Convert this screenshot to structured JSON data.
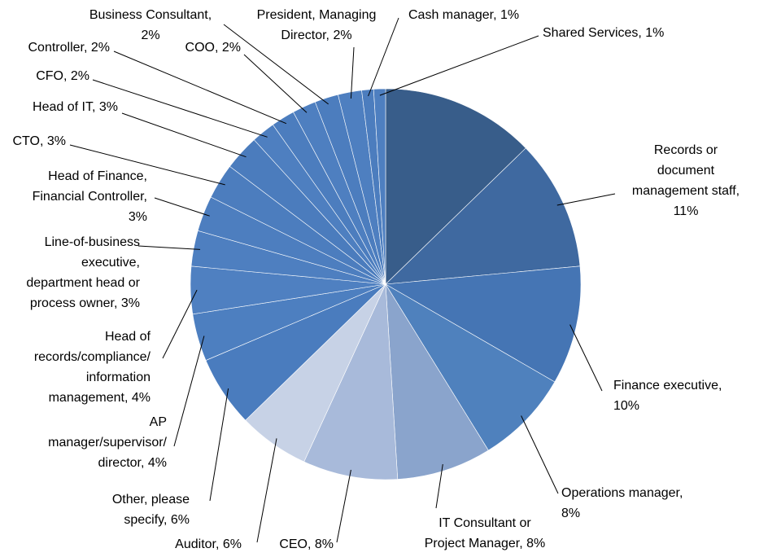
{
  "chart_data": {
    "type": "pie",
    "start_angle_deg": 0,
    "direction": "clockwise",
    "slices": [
      {
        "label": "",
        "value": 13,
        "label_text": [],
        "color": "#385D8A"
      },
      {
        "label": "Records or document management staff",
        "value": 11,
        "label_text": [
          "Records or",
          "document",
          "management staff,",
          "11%"
        ],
        "color": "#3F69A0"
      },
      {
        "label": "Finance executive",
        "value": 10,
        "label_text": [
          "Finance executive,",
          "10%"
        ],
        "color": "#4575B4"
      },
      {
        "label": "Operations manager",
        "value": 8,
        "label_text": [
          "Operations manager,",
          "8%"
        ],
        "color": "#4F81BD"
      },
      {
        "label": "IT Consultant or Project Manager",
        "value": 8,
        "label_text": [
          "IT Consultant or",
          "Project Manager, 8%"
        ],
        "color": "#8AA4CC"
      },
      {
        "label": "CEO",
        "value": 8,
        "label_text": [
          "CEO, 8%"
        ],
        "color": "#A8BADA"
      },
      {
        "label": "Auditor",
        "value": 6,
        "label_text": [
          "Auditor, 6%"
        ],
        "color": "#C7D2E6"
      },
      {
        "label": "Other, please specify",
        "value": 6,
        "label_text": [
          "Other, please",
          "specify, 6%"
        ],
        "color": "#4A7CBE"
      },
      {
        "label": "AP manager/supervisor/director",
        "value": 4,
        "label_text": [
          "AP",
          "manager/supervisor/",
          "director, 4%"
        ],
        "color": "#4D7FC0"
      },
      {
        "label": "Head of records/compliance/information management",
        "value": 4,
        "label_text": [
          "Head of",
          "records/compliance/",
          "information",
          "management, 4%"
        ],
        "color": "#4F80C1"
      },
      {
        "label": "Line-of-business executive, department head or process owner",
        "value": 3,
        "label_text": [
          "Line-of-business",
          "executive,",
          "department head or",
          "process owner, 3%"
        ],
        "color": "#4E7FC0"
      },
      {
        "label": "Head of Finance, Financial Controller",
        "value": 3,
        "label_text": [
          "Head of Finance,",
          "Financial Controller,",
          "3%"
        ],
        "color": "#4D7EBF"
      },
      {
        "label": "CTO",
        "value": 3,
        "label_text": [
          "CTO, 3%"
        ],
        "color": "#4C7DBE"
      },
      {
        "label": "Head of IT",
        "value": 3,
        "label_text": [
          "Head of IT, 3%"
        ],
        "color": "#4B7CBD"
      },
      {
        "label": "CFO",
        "value": 2,
        "label_text": [
          "CFO, 2%"
        ],
        "color": "#4E7FC0"
      },
      {
        "label": "Controller",
        "value": 2,
        "label_text": [
          "Controller, 2%"
        ],
        "color": "#4C7DBE"
      },
      {
        "label": "COO",
        "value": 2,
        "label_text": [
          "COO, 2%"
        ],
        "color": "#4E7FC0"
      },
      {
        "label": "Business Consultant",
        "value": 2,
        "label_text": [
          "Business Consultant,",
          "2%"
        ],
        "color": "#4C7DBE"
      },
      {
        "label": "President, Managing Director",
        "value": 2,
        "label_text": [
          "President, Managing",
          "Director, 2%"
        ],
        "color": "#4E7FC0"
      },
      {
        "label": "Cash manager",
        "value": 1,
        "label_text": [
          "Cash manager, 1%"
        ],
        "color": "#4C7DBE"
      },
      {
        "label": "Shared Services",
        "value": 1,
        "label_text": [
          "Shared Services, 1%"
        ],
        "color": "#4E7FC0"
      }
    ]
  }
}
